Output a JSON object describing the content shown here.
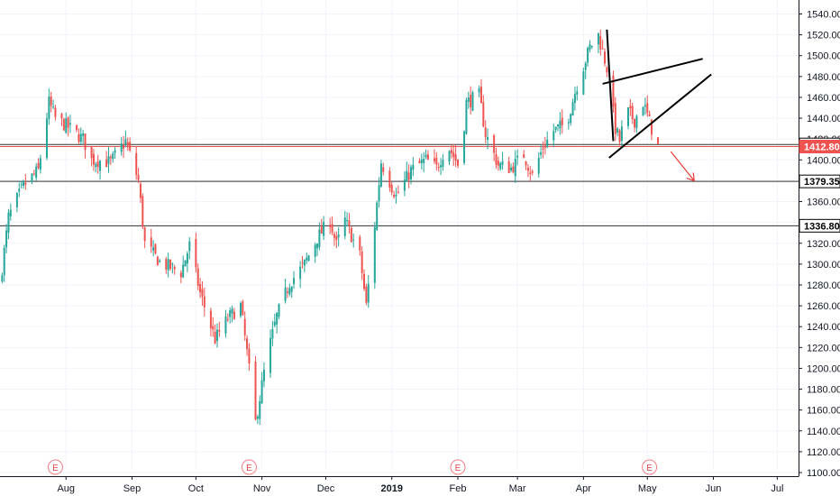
{
  "colors": {
    "up": "#26a69a",
    "down": "#ef5350",
    "axis_text": "#131722",
    "level_line": "#333333",
    "price_tag_bg": "#ef5350",
    "drawing": "#000000",
    "arrow": "#e53935",
    "earnings": "#f07f84"
  },
  "chart_data": {
    "type": "candlestick",
    "y_axis": {
      "position": "right",
      "ylim": [
        1095,
        1547
      ],
      "ticks": [
        "1540.00",
        "1520.00",
        "1500.00",
        "1480.00",
        "1460.00",
        "1440.00",
        "1420.00",
        "1400.00",
        "1380.00",
        "1360.00",
        "1340.00",
        "1320.00",
        "1300.00",
        "1280.00",
        "1260.00",
        "1240.00",
        "1220.00",
        "1200.00",
        "1180.00",
        "1160.00",
        "1140.00",
        "1120.00",
        "1100.00"
      ]
    },
    "x_axis": {
      "range": [
        "2018-07-01",
        "2019-07-11"
      ],
      "ticks": [
        {
          "label": "Aug",
          "date": "2018-08-01",
          "bold": false
        },
        {
          "label": "Sep",
          "date": "2018-09-01",
          "bold": false
        },
        {
          "label": "Oct",
          "date": "2018-10-01",
          "bold": false
        },
        {
          "label": "Nov",
          "date": "2018-11-01",
          "bold": false
        },
        {
          "label": "Dec",
          "date": "2018-12-01",
          "bold": false
        },
        {
          "label": "2019",
          "date": "2019-01-01",
          "bold": true
        },
        {
          "label": "Feb",
          "date": "2019-02-01",
          "bold": false
        },
        {
          "label": "Mar",
          "date": "2019-03-01",
          "bold": false
        },
        {
          "label": "Apr",
          "date": "2019-04-01",
          "bold": false
        },
        {
          "label": "May",
          "date": "2019-05-01",
          "bold": false
        },
        {
          "label": "Jun",
          "date": "2019-06-01",
          "bold": false
        },
        {
          "label": "Jul",
          "date": "2019-07-01",
          "bold": false
        }
      ]
    },
    "price_anchors": [
      [
        "2018-07-01",
        1280
      ],
      [
        "2018-07-05",
        1345
      ],
      [
        "2018-07-12",
        1375
      ],
      [
        "2018-07-19",
        1390
      ],
      [
        "2018-07-24",
        1455
      ],
      [
        "2018-07-27",
        1440
      ],
      [
        "2018-08-03",
        1430
      ],
      [
        "2018-08-09",
        1420
      ],
      [
        "2018-08-13",
        1400
      ],
      [
        "2018-08-22",
        1398
      ],
      [
        "2018-08-29",
        1418
      ],
      [
        "2018-09-04",
        1380
      ],
      [
        "2018-09-07",
        1320
      ],
      [
        "2018-09-14",
        1302
      ],
      [
        "2018-09-24",
        1292
      ],
      [
        "2018-09-28",
        1318
      ],
      [
        "2018-10-03",
        1272
      ],
      [
        "2018-10-10",
        1228
      ],
      [
        "2018-10-16",
        1248
      ],
      [
        "2018-10-22",
        1260
      ],
      [
        "2018-10-25",
        1215
      ],
      [
        "2018-10-29",
        1148
      ],
      [
        "2018-11-03",
        1208
      ],
      [
        "2018-11-08",
        1250
      ],
      [
        "2018-11-14",
        1282
      ],
      [
        "2018-11-21",
        1300
      ],
      [
        "2018-11-27",
        1325
      ],
      [
        "2018-12-03",
        1342
      ],
      [
        "2018-12-06",
        1318
      ],
      [
        "2018-12-10",
        1342
      ],
      [
        "2018-12-17",
        1308
      ],
      [
        "2018-12-20",
        1260
      ],
      [
        "2018-12-24",
        1338
      ],
      [
        "2018-12-27",
        1398
      ],
      [
        "2019-01-03",
        1365
      ],
      [
        "2019-01-10",
        1390
      ],
      [
        "2019-01-17",
        1400
      ],
      [
        "2019-01-22",
        1392
      ],
      [
        "2019-01-27",
        1415
      ],
      [
        "2019-02-02",
        1392
      ],
      [
        "2019-02-05",
        1455
      ],
      [
        "2019-02-11",
        1462
      ],
      [
        "2019-02-14",
        1425
      ],
      [
        "2019-02-20",
        1395
      ],
      [
        "2019-02-26",
        1392
      ],
      [
        "2019-03-04",
        1405
      ],
      [
        "2019-03-08",
        1385
      ],
      [
        "2019-03-13",
        1412
      ],
      [
        "2019-03-18",
        1428
      ],
      [
        "2019-03-24",
        1435
      ],
      [
        "2019-03-29",
        1472
      ],
      [
        "2019-04-04",
        1508
      ],
      [
        "2019-04-08",
        1520
      ],
      [
        "2019-04-12",
        1488
      ],
      [
        "2019-04-16",
        1430
      ],
      [
        "2019-04-18",
        1418
      ],
      [
        "2019-04-21",
        1448
      ],
      [
        "2019-04-25",
        1438
      ],
      [
        "2019-04-29",
        1455
      ],
      [
        "2019-05-03",
        1430
      ],
      [
        "2019-05-06",
        1412.8
      ]
    ],
    "levels": [
      {
        "price": 1414.8,
        "label": "1414.80",
        "style": "outlined"
      },
      {
        "price": 1412.8,
        "label": "1412.80",
        "style": "red-tag"
      },
      {
        "price": 1379.35,
        "label": "1379.35",
        "style": "outlined"
      },
      {
        "price": 1336.8,
        "label": "1336.80",
        "style": "outlined"
      }
    ],
    "drawings": [
      {
        "type": "trendline",
        "from": [
          "2019-04-12",
          1525
        ],
        "to": [
          "2019-04-15",
          1418
        ]
      },
      {
        "type": "trendline",
        "from": [
          "2019-04-10",
          1473
        ],
        "to": [
          "2019-05-27",
          1497
        ]
      },
      {
        "type": "trendline",
        "from": [
          "2019-04-13",
          1402
        ],
        "to": [
          "2019-05-31",
          1482
        ]
      },
      {
        "type": "arrow",
        "from": [
          "2019-05-12",
          1408
        ],
        "to": [
          "2019-05-23",
          1380
        ]
      }
    ],
    "earnings_markers": [
      {
        "label": "E",
        "date": "2018-07-27"
      },
      {
        "label": "E",
        "date": "2018-10-26"
      },
      {
        "label": "E",
        "date": "2019-02-01"
      },
      {
        "label": "E",
        "date": "2019-05-02"
      }
    ]
  }
}
